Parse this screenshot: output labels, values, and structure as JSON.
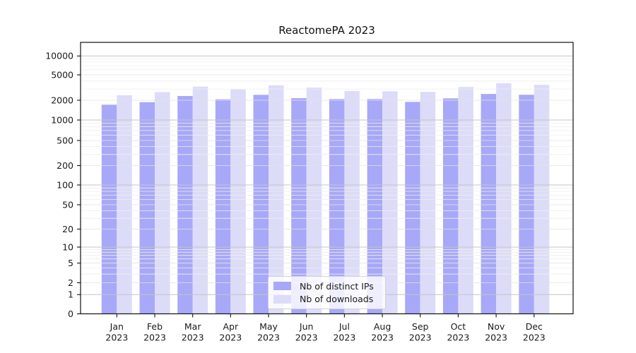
{
  "title": "ReactomePA 2023",
  "chart_data": {
    "type": "bar",
    "title": "ReactomePA 2023",
    "categories": [
      "Jan 2023",
      "Feb 2023",
      "Mar 2023",
      "Apr 2023",
      "May 2023",
      "Jun 2023",
      "Jul 2023",
      "Aug 2023",
      "Sep 2023",
      "Oct 2023",
      "Nov 2023",
      "Dec 2023"
    ],
    "months": [
      "Jan",
      "Feb",
      "Mar",
      "Apr",
      "May",
      "Jun",
      "Jul",
      "Aug",
      "Sep",
      "Oct",
      "Nov",
      "Dec"
    ],
    "year": "2023",
    "series": [
      {
        "name": "Nb of distinct IPs",
        "color": "#a8a8f8",
        "values": [
          1710,
          1870,
          2330,
          2070,
          2430,
          2160,
          2090,
          2090,
          1890,
          2140,
          2510,
          2440
        ]
      },
      {
        "name": "Nb of downloads",
        "color": "#dcdcf9",
        "values": [
          2400,
          2680,
          3270,
          2950,
          3420,
          3160,
          2800,
          2760,
          2700,
          3220,
          3700,
          3490
        ]
      }
    ],
    "ylabel": "",
    "xlabel": "",
    "y_scale": "symlog",
    "y_ticks": [
      0,
      1,
      2,
      5,
      10,
      20,
      50,
      100,
      200,
      500,
      1000,
      2000,
      5000,
      10000
    ],
    "ylim": [
      0,
      15000
    ],
    "grid": "major and minor horizontal gridlines drawn over bars",
    "legend_position": "lower center",
    "colors": {
      "distinct_ips": "#a8a8f8",
      "downloads": "#dcdcf9",
      "major_grid": "#c4c4c4",
      "minor_grid": "#ececec",
      "axis": "#1a1a1a"
    }
  }
}
